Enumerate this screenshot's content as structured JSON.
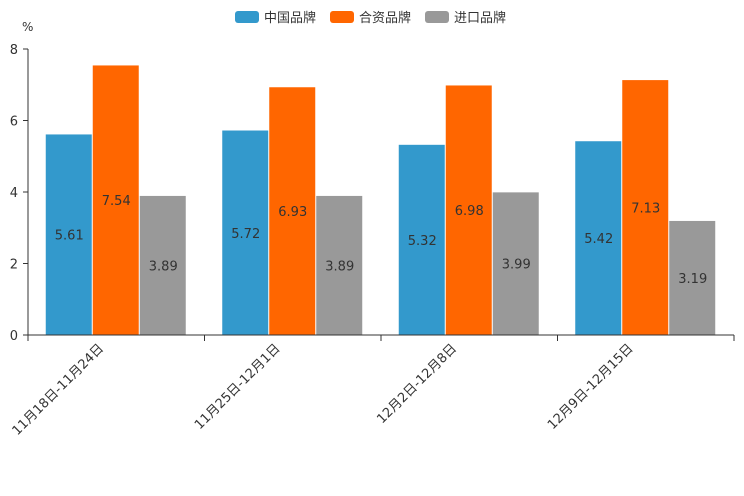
{
  "chart_data": {
    "type": "bar",
    "unit_label": "%",
    "categories": [
      "11月18日-11月24日",
      "11月25日-12月1日",
      "12月2日-12月8日",
      "12月9日-12月15日"
    ],
    "series": [
      {
        "name": "中国品牌",
        "color": "#3399cc",
        "values": [
          5.61,
          5.72,
          5.32,
          5.42
        ]
      },
      {
        "name": "合资品牌",
        "color": "#ff6600",
        "values": [
          7.54,
          6.93,
          6.98,
          7.13
        ]
      },
      {
        "name": "进口品牌",
        "color": "#999999",
        "values": [
          3.89,
          3.89,
          3.99,
          3.19
        ]
      }
    ],
    "ylim": [
      0,
      8
    ],
    "yticks": [
      0,
      2,
      4,
      6,
      8
    ],
    "legend_position": "top-center",
    "grid": false
  }
}
